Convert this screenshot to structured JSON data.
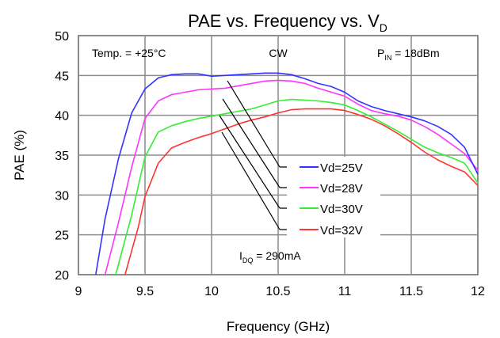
{
  "chart_data": {
    "type": "line",
    "title": "PAE vs. Frequency vs. V",
    "title_sub": "D",
    "xlabel": "Frequency (GHz)",
    "ylabel": "PAE (%)",
    "xlim": [
      9,
      12
    ],
    "ylim": [
      20,
      50
    ],
    "xticks": [
      9,
      9.5,
      10,
      10.5,
      11,
      11.5,
      12
    ],
    "xtick_labels": [
      "9",
      "9.5",
      "10",
      "10.5",
      "11",
      "11.5",
      "12"
    ],
    "yticks": [
      20,
      25,
      30,
      35,
      40,
      45,
      50
    ],
    "ytick_labels": [
      "20",
      "25",
      "30",
      "35",
      "40",
      "45",
      "50"
    ],
    "grid": true,
    "annotations": {
      "temp": "Temp. = +25°C",
      "mode": "CW",
      "pin_main": "P",
      "pin_sub": "IN",
      "pin_rest": " = 18dBm",
      "idq_main": "I",
      "idq_sub": "DQ",
      "idq_rest": " = 290mA"
    },
    "legend_position": "center-right",
    "series": [
      {
        "name": "Vd=25V",
        "color": "#3333ff",
        "x": [
          9.13,
          9.2,
          9.3,
          9.4,
          9.5,
          9.6,
          9.7,
          9.8,
          9.9,
          10.0,
          10.1,
          10.2,
          10.3,
          10.4,
          10.5,
          10.6,
          10.7,
          10.8,
          10.9,
          11.0,
          11.1,
          11.2,
          11.3,
          11.4,
          11.5,
          11.6,
          11.7,
          11.8,
          11.9,
          12.0
        ],
        "y": [
          20,
          27,
          34.5,
          40.3,
          43.3,
          44.7,
          45.1,
          45.2,
          45.2,
          44.9,
          45.0,
          45.1,
          45.2,
          45.3,
          45.3,
          45.1,
          44.6,
          44.0,
          43.6,
          42.9,
          41.8,
          41.1,
          40.6,
          40.2,
          39.8,
          39.3,
          38.6,
          37.6,
          36.0,
          32.6
        ]
      },
      {
        "name": "Vd=28V",
        "color": "#ff33ff",
        "x": [
          9.2,
          9.3,
          9.4,
          9.5,
          9.6,
          9.7,
          9.8,
          9.9,
          10.0,
          10.1,
          10.2,
          10.3,
          10.4,
          10.5,
          10.6,
          10.7,
          10.8,
          10.9,
          11.0,
          11.1,
          11.2,
          11.3,
          11.4,
          11.5,
          11.6,
          11.7,
          11.8,
          11.9,
          12.0
        ],
        "y": [
          20,
          26.5,
          33.5,
          39.6,
          41.8,
          42.6,
          42.9,
          43.2,
          43.3,
          43.4,
          43.7,
          44.0,
          44.3,
          44.4,
          44.3,
          44.0,
          43.4,
          42.9,
          42.4,
          41.4,
          40.6,
          40.2,
          39.9,
          39.4,
          38.6,
          37.6,
          36.4,
          35.2,
          33.1
        ]
      },
      {
        "name": "Vd=30V",
        "color": "#33ee33",
        "x": [
          9.28,
          9.4,
          9.5,
          9.6,
          9.7,
          9.8,
          9.9,
          10.0,
          10.1,
          10.2,
          10.3,
          10.4,
          10.5,
          10.6,
          10.7,
          10.8,
          10.9,
          11.0,
          11.1,
          11.2,
          11.3,
          11.4,
          11.5,
          11.6,
          11.7,
          11.8,
          11.9,
          12.0
        ],
        "y": [
          20,
          27.5,
          34.8,
          37.9,
          38.7,
          39.2,
          39.6,
          39.9,
          40.2,
          40.5,
          40.8,
          41.3,
          41.8,
          42.0,
          41.9,
          41.8,
          41.6,
          41.3,
          40.6,
          39.8,
          38.9,
          38.0,
          37.0,
          36.0,
          35.3,
          34.7,
          34.0,
          31.5
        ]
      },
      {
        "name": "Vd=32V",
        "color": "#ff3333",
        "x": [
          9.35,
          9.45,
          9.5,
          9.6,
          9.7,
          9.8,
          9.9,
          10.0,
          10.1,
          10.2,
          10.3,
          10.4,
          10.5,
          10.6,
          10.7,
          10.8,
          10.9,
          11.0,
          11.1,
          11.2,
          11.3,
          11.4,
          11.5,
          11.6,
          11.7,
          11.8,
          11.9,
          12.0
        ],
        "y": [
          20,
          26,
          29.8,
          34.0,
          35.9,
          36.6,
          37.2,
          37.7,
          38.3,
          38.9,
          39.4,
          39.8,
          40.3,
          40.7,
          40.8,
          40.8,
          40.8,
          40.6,
          40.1,
          39.5,
          38.7,
          37.7,
          36.6,
          35.4,
          34.4,
          33.6,
          32.9,
          31.2
        ]
      }
    ]
  }
}
